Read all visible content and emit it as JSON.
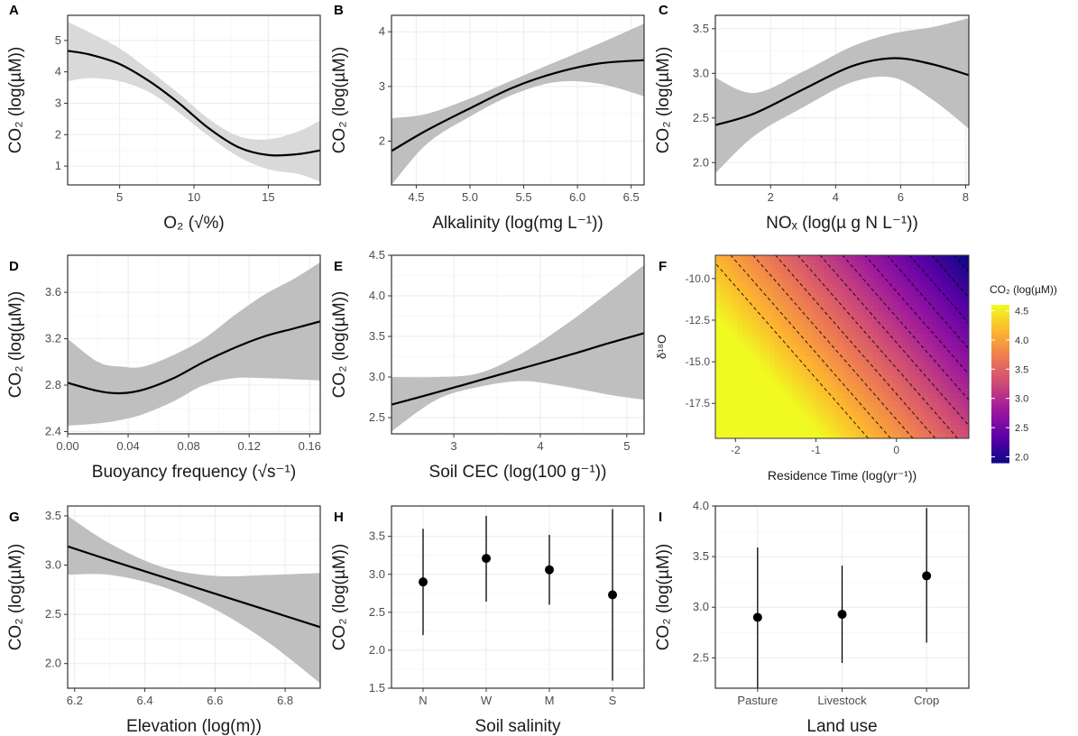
{
  "chart_data": [
    {
      "panel": "A",
      "type": "line",
      "xlabel": "O₂ (√%)",
      "ylabel": "CO₂ (log(µM))",
      "xlim": [
        1.5,
        18.5
      ],
      "ylim": [
        0.4,
        5.8
      ],
      "xticks": [
        5,
        10,
        15
      ],
      "yticks": [
        1,
        2,
        3,
        4,
        5
      ],
      "x": [
        1.5,
        3,
        5,
        7,
        9,
        11,
        13,
        15,
        17,
        18.5
      ],
      "y": [
        4.67,
        4.55,
        4.25,
        3.7,
        3.0,
        2.2,
        1.6,
        1.35,
        1.38,
        1.5
      ],
      "lower": [
        3.7,
        3.8,
        3.7,
        3.35,
        2.7,
        1.95,
        1.3,
        0.9,
        0.75,
        0.5
      ],
      "upper": [
        5.6,
        5.25,
        4.75,
        4.05,
        3.3,
        2.5,
        1.95,
        1.85,
        2.1,
        2.45
      ],
      "band_color": "#d9d9d9",
      "grid": true
    },
    {
      "panel": "B",
      "type": "line",
      "xlabel": "Alkalinity (log(mg L⁻¹))",
      "ylabel": "CO₂ (log(µM))",
      "xlim": [
        4.27,
        6.62
      ],
      "ylim": [
        1.2,
        4.3
      ],
      "xticks": [
        4.5,
        5.0,
        5.5,
        6.0,
        6.5
      ],
      "yticks": [
        2,
        3,
        4
      ],
      "x": [
        4.27,
        4.6,
        5.0,
        5.4,
        5.8,
        6.2,
        6.62
      ],
      "y": [
        1.82,
        2.2,
        2.6,
        2.98,
        3.25,
        3.42,
        3.48
      ],
      "lower": [
        1.2,
        1.95,
        2.45,
        2.85,
        3.08,
        3.05,
        2.82
      ],
      "upper": [
        2.42,
        2.5,
        2.78,
        3.12,
        3.45,
        3.78,
        4.15
      ],
      "band_color": "#bfbfbf",
      "grid": true
    },
    {
      "panel": "C",
      "type": "line",
      "xlabel": "NOₓ (log(µ g N L⁻¹))",
      "ylabel": "CO₂ (log(µM))",
      "xlim": [
        0.3,
        8.1
      ],
      "ylim": [
        1.75,
        3.65
      ],
      "xticks": [
        2,
        4,
        6,
        8
      ],
      "yticks": [
        2.0,
        2.5,
        3.0,
        3.5
      ],
      "x": [
        0.3,
        1.5,
        3,
        4.5,
        5.8,
        7,
        8.1
      ],
      "y": [
        2.42,
        2.55,
        2.82,
        3.08,
        3.17,
        3.1,
        2.98
      ],
      "lower": [
        1.88,
        2.3,
        2.62,
        2.9,
        2.95,
        2.7,
        2.38
      ],
      "upper": [
        2.95,
        2.78,
        3.02,
        3.3,
        3.45,
        3.52,
        3.62
      ],
      "band_color": "#bfbfbf",
      "grid": true
    },
    {
      "panel": "D",
      "type": "line",
      "xlabel": "Buoyancy frequency  (√s⁻¹)",
      "ylabel": "CO₂ (log(µM))",
      "xlim": [
        0,
        0.167
      ],
      "ylim": [
        2.38,
        3.92
      ],
      "xticks": [
        0.0,
        0.04,
        0.08,
        0.12,
        0.16
      ],
      "yticks": [
        2.4,
        2.8,
        3.2,
        3.6
      ],
      "x": [
        0,
        0.02,
        0.035,
        0.05,
        0.07,
        0.09,
        0.11,
        0.13,
        0.15,
        0.167
      ],
      "y": [
        2.82,
        2.75,
        2.73,
        2.76,
        2.86,
        3.0,
        3.12,
        3.22,
        3.29,
        3.35
      ],
      "lower": [
        2.45,
        2.47,
        2.5,
        2.55,
        2.66,
        2.8,
        2.86,
        2.86,
        2.85,
        2.84
      ],
      "upper": [
        3.2,
        3.0,
        2.96,
        2.96,
        3.06,
        3.2,
        3.4,
        3.58,
        3.72,
        3.86
      ],
      "band_color": "#bfbfbf",
      "grid": true
    },
    {
      "panel": "E",
      "type": "line",
      "xlabel": "Soil CEC  (log(100 g⁻¹))",
      "ylabel": "CO₂ (log(µM))",
      "xlim": [
        2.28,
        5.2
      ],
      "ylim": [
        2.3,
        4.5
      ],
      "xticks": [
        3,
        4,
        5
      ],
      "yticks": [
        2.5,
        3.0,
        3.5,
        4.0,
        4.5
      ],
      "x": [
        2.28,
        2.8,
        3.3,
        3.8,
        4.3,
        4.8,
        5.2
      ],
      "y": [
        2.66,
        2.81,
        2.96,
        3.11,
        3.26,
        3.42,
        3.54
      ],
      "lower": [
        2.33,
        2.72,
        2.88,
        2.95,
        2.88,
        2.78,
        2.72
      ],
      "upper": [
        3.0,
        3.0,
        3.05,
        3.3,
        3.65,
        4.05,
        4.38
      ],
      "band_color": "#bfbfbf",
      "grid": true
    },
    {
      "panel": "F",
      "type": "heatmap",
      "xlabel": "Residence Time  (log(yr⁻¹))",
      "ylabel": "δ¹⁸O",
      "xlim": [
        -2.25,
        0.9
      ],
      "ylim": [
        -19.6,
        -8.6
      ],
      "xticks": [
        -2,
        -1,
        0
      ],
      "yticks": [
        -10.0,
        -12.5,
        -15.0,
        -17.5
      ],
      "legend": {
        "title": "CO₂ (log(µM))",
        "ticks": [
          2.0,
          2.5,
          3.0,
          3.5,
          4.0,
          4.5
        ],
        "range": [
          1.9,
          4.6
        ],
        "placement": "right"
      },
      "colorscale": [
        "#0d0887",
        "#5d01a6",
        "#9c179e",
        "#cc4778",
        "#ed7953",
        "#fdb42f",
        "#f0f921"
      ],
      "model": {
        "intercept": 1.4,
        "x_coef": -0.72,
        "y_coef": -0.13
      }
    },
    {
      "panel": "G",
      "type": "line",
      "xlabel": "Elevation (log(m))",
      "ylabel": "CO₂ (log(µM))",
      "xlim": [
        6.18,
        6.9
      ],
      "ylim": [
        1.75,
        3.6
      ],
      "xticks": [
        6.2,
        6.4,
        6.6,
        6.8
      ],
      "yticks": [
        2.0,
        2.5,
        3.0,
        3.5
      ],
      "x": [
        6.18,
        6.3,
        6.45,
        6.6,
        6.75,
        6.9
      ],
      "y": [
        3.19,
        3.05,
        2.88,
        2.71,
        2.54,
        2.37
      ],
      "lower": [
        2.9,
        2.9,
        2.78,
        2.55,
        2.22,
        1.8
      ],
      "upper": [
        3.5,
        3.22,
        2.98,
        2.89,
        2.9,
        2.92
      ],
      "band_color": "#bfbfbf",
      "grid": true
    },
    {
      "panel": "H",
      "type": "scatter",
      "xlabel": "Soil salinity",
      "ylabel": "CO₂ (log(µM))",
      "categories": [
        "N",
        "W",
        "M",
        "S"
      ],
      "ylim": [
        1.5,
        3.9
      ],
      "yticks": [
        1.5,
        2.0,
        2.5,
        3.0,
        3.5
      ],
      "values": [
        2.9,
        3.21,
        3.06,
        2.73
      ],
      "lower": [
        2.2,
        2.64,
        2.6,
        1.6
      ],
      "upper": [
        3.6,
        3.77,
        3.52,
        3.86
      ],
      "grid": true
    },
    {
      "panel": "I",
      "type": "scatter",
      "xlabel": "Land use",
      "ylabel": "CO₂ (log(µM))",
      "categories": [
        "Pasture",
        "Livestock",
        "Crop"
      ],
      "ylim": [
        2.2,
        4.0
      ],
      "yticks": [
        2.5,
        3.0,
        3.5,
        4.0
      ],
      "values": [
        2.9,
        2.93,
        3.31
      ],
      "lower": [
        2.2,
        2.45,
        2.65
      ],
      "upper": [
        3.59,
        3.41,
        3.98
      ],
      "grid": true
    }
  ]
}
